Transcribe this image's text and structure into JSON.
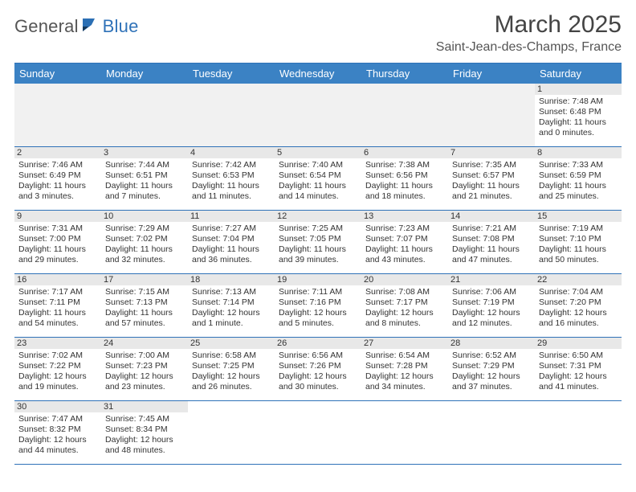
{
  "logo": {
    "text1": "General",
    "text2": "Blue"
  },
  "header": {
    "month_title": "March 2025",
    "location": "Saint-Jean-des-Champs, France"
  },
  "colors": {
    "header_bg": "#3b82c4",
    "accent": "#2f72b8",
    "daynum_bg": "#e8e8e8",
    "empty_bg": "#f1f1f1"
  },
  "day_headers": [
    "Sunday",
    "Monday",
    "Tuesday",
    "Wednesday",
    "Thursday",
    "Friday",
    "Saturday"
  ],
  "weeks": [
    [
      {
        "empty": true
      },
      {
        "empty": true
      },
      {
        "empty": true
      },
      {
        "empty": true
      },
      {
        "empty": true
      },
      {
        "empty": true
      },
      {
        "day": "1",
        "sunrise": "Sunrise: 7:48 AM",
        "sunset": "Sunset: 6:48 PM",
        "daylight1": "Daylight: 11 hours",
        "daylight2": "and 0 minutes."
      }
    ],
    [
      {
        "day": "2",
        "sunrise": "Sunrise: 7:46 AM",
        "sunset": "Sunset: 6:49 PM",
        "daylight1": "Daylight: 11 hours",
        "daylight2": "and 3 minutes."
      },
      {
        "day": "3",
        "sunrise": "Sunrise: 7:44 AM",
        "sunset": "Sunset: 6:51 PM",
        "daylight1": "Daylight: 11 hours",
        "daylight2": "and 7 minutes."
      },
      {
        "day": "4",
        "sunrise": "Sunrise: 7:42 AM",
        "sunset": "Sunset: 6:53 PM",
        "daylight1": "Daylight: 11 hours",
        "daylight2": "and 11 minutes."
      },
      {
        "day": "5",
        "sunrise": "Sunrise: 7:40 AM",
        "sunset": "Sunset: 6:54 PM",
        "daylight1": "Daylight: 11 hours",
        "daylight2": "and 14 minutes."
      },
      {
        "day": "6",
        "sunrise": "Sunrise: 7:38 AM",
        "sunset": "Sunset: 6:56 PM",
        "daylight1": "Daylight: 11 hours",
        "daylight2": "and 18 minutes."
      },
      {
        "day": "7",
        "sunrise": "Sunrise: 7:35 AM",
        "sunset": "Sunset: 6:57 PM",
        "daylight1": "Daylight: 11 hours",
        "daylight2": "and 21 minutes."
      },
      {
        "day": "8",
        "sunrise": "Sunrise: 7:33 AM",
        "sunset": "Sunset: 6:59 PM",
        "daylight1": "Daylight: 11 hours",
        "daylight2": "and 25 minutes."
      }
    ],
    [
      {
        "day": "9",
        "sunrise": "Sunrise: 7:31 AM",
        "sunset": "Sunset: 7:00 PM",
        "daylight1": "Daylight: 11 hours",
        "daylight2": "and 29 minutes."
      },
      {
        "day": "10",
        "sunrise": "Sunrise: 7:29 AM",
        "sunset": "Sunset: 7:02 PM",
        "daylight1": "Daylight: 11 hours",
        "daylight2": "and 32 minutes."
      },
      {
        "day": "11",
        "sunrise": "Sunrise: 7:27 AM",
        "sunset": "Sunset: 7:04 PM",
        "daylight1": "Daylight: 11 hours",
        "daylight2": "and 36 minutes."
      },
      {
        "day": "12",
        "sunrise": "Sunrise: 7:25 AM",
        "sunset": "Sunset: 7:05 PM",
        "daylight1": "Daylight: 11 hours",
        "daylight2": "and 39 minutes."
      },
      {
        "day": "13",
        "sunrise": "Sunrise: 7:23 AM",
        "sunset": "Sunset: 7:07 PM",
        "daylight1": "Daylight: 11 hours",
        "daylight2": "and 43 minutes."
      },
      {
        "day": "14",
        "sunrise": "Sunrise: 7:21 AM",
        "sunset": "Sunset: 7:08 PM",
        "daylight1": "Daylight: 11 hours",
        "daylight2": "and 47 minutes."
      },
      {
        "day": "15",
        "sunrise": "Sunrise: 7:19 AM",
        "sunset": "Sunset: 7:10 PM",
        "daylight1": "Daylight: 11 hours",
        "daylight2": "and 50 minutes."
      }
    ],
    [
      {
        "day": "16",
        "sunrise": "Sunrise: 7:17 AM",
        "sunset": "Sunset: 7:11 PM",
        "daylight1": "Daylight: 11 hours",
        "daylight2": "and 54 minutes."
      },
      {
        "day": "17",
        "sunrise": "Sunrise: 7:15 AM",
        "sunset": "Sunset: 7:13 PM",
        "daylight1": "Daylight: 11 hours",
        "daylight2": "and 57 minutes."
      },
      {
        "day": "18",
        "sunrise": "Sunrise: 7:13 AM",
        "sunset": "Sunset: 7:14 PM",
        "daylight1": "Daylight: 12 hours",
        "daylight2": "and 1 minute."
      },
      {
        "day": "19",
        "sunrise": "Sunrise: 7:11 AM",
        "sunset": "Sunset: 7:16 PM",
        "daylight1": "Daylight: 12 hours",
        "daylight2": "and 5 minutes."
      },
      {
        "day": "20",
        "sunrise": "Sunrise: 7:08 AM",
        "sunset": "Sunset: 7:17 PM",
        "daylight1": "Daylight: 12 hours",
        "daylight2": "and 8 minutes."
      },
      {
        "day": "21",
        "sunrise": "Sunrise: 7:06 AM",
        "sunset": "Sunset: 7:19 PM",
        "daylight1": "Daylight: 12 hours",
        "daylight2": "and 12 minutes."
      },
      {
        "day": "22",
        "sunrise": "Sunrise: 7:04 AM",
        "sunset": "Sunset: 7:20 PM",
        "daylight1": "Daylight: 12 hours",
        "daylight2": "and 16 minutes."
      }
    ],
    [
      {
        "day": "23",
        "sunrise": "Sunrise: 7:02 AM",
        "sunset": "Sunset: 7:22 PM",
        "daylight1": "Daylight: 12 hours",
        "daylight2": "and 19 minutes."
      },
      {
        "day": "24",
        "sunrise": "Sunrise: 7:00 AM",
        "sunset": "Sunset: 7:23 PM",
        "daylight1": "Daylight: 12 hours",
        "daylight2": "and 23 minutes."
      },
      {
        "day": "25",
        "sunrise": "Sunrise: 6:58 AM",
        "sunset": "Sunset: 7:25 PM",
        "daylight1": "Daylight: 12 hours",
        "daylight2": "and 26 minutes."
      },
      {
        "day": "26",
        "sunrise": "Sunrise: 6:56 AM",
        "sunset": "Sunset: 7:26 PM",
        "daylight1": "Daylight: 12 hours",
        "daylight2": "and 30 minutes."
      },
      {
        "day": "27",
        "sunrise": "Sunrise: 6:54 AM",
        "sunset": "Sunset: 7:28 PM",
        "daylight1": "Daylight: 12 hours",
        "daylight2": "and 34 minutes."
      },
      {
        "day": "28",
        "sunrise": "Sunrise: 6:52 AM",
        "sunset": "Sunset: 7:29 PM",
        "daylight1": "Daylight: 12 hours",
        "daylight2": "and 37 minutes."
      },
      {
        "day": "29",
        "sunrise": "Sunrise: 6:50 AM",
        "sunset": "Sunset: 7:31 PM",
        "daylight1": "Daylight: 12 hours",
        "daylight2": "and 41 minutes."
      }
    ],
    [
      {
        "day": "30",
        "sunrise": "Sunrise: 7:47 AM",
        "sunset": "Sunset: 8:32 PM",
        "daylight1": "Daylight: 12 hours",
        "daylight2": "and 44 minutes."
      },
      {
        "day": "31",
        "sunrise": "Sunrise: 7:45 AM",
        "sunset": "Sunset: 8:34 PM",
        "daylight1": "Daylight: 12 hours",
        "daylight2": "and 48 minutes."
      },
      {
        "empty": true,
        "blank": true
      },
      {
        "empty": true,
        "blank": true
      },
      {
        "empty": true,
        "blank": true
      },
      {
        "empty": true,
        "blank": true
      },
      {
        "empty": true,
        "blank": true
      }
    ]
  ]
}
